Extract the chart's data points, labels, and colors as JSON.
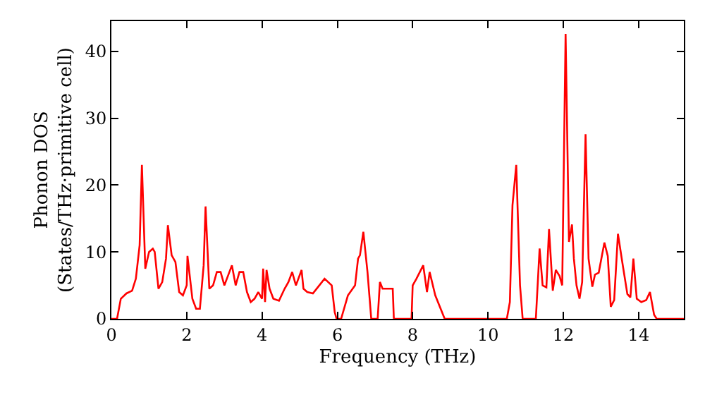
{
  "chart_data": {
    "type": "line",
    "xlabel": "Frequency (THz)",
    "ylabel": "Phonon DOS\n(States/THz·primitive cell)",
    "xlim": [
      0,
      15.2
    ],
    "ylim": [
      0,
      44.5
    ],
    "xticks": [
      0,
      2,
      4,
      6,
      8,
      10,
      12,
      14
    ],
    "yticks": [
      0,
      10,
      20,
      30,
      40
    ],
    "marker": "none",
    "line_style": "solid",
    "series": [
      {
        "color": "#ff0000",
        "x": [
          0,
          0.15,
          0.25,
          0.4,
          0.55,
          0.65,
          0.75,
          0.81,
          0.9,
          1.0,
          1.1,
          1.15,
          1.25,
          1.35,
          1.45,
          1.5,
          1.6,
          1.7,
          1.8,
          1.9,
          2.0,
          2.02,
          2.15,
          2.25,
          2.35,
          2.45,
          2.5,
          2.6,
          2.7,
          2.8,
          2.9,
          3.0,
          3.1,
          3.2,
          3.3,
          3.4,
          3.5,
          3.6,
          3.7,
          3.8,
          3.9,
          4.0,
          4.03,
          4.08,
          4.12,
          4.2,
          4.3,
          4.45,
          4.6,
          4.7,
          4.8,
          4.9,
          5.05,
          5.1,
          5.2,
          5.35,
          5.45,
          5.66,
          5.85,
          5.93,
          5.98,
          6.1,
          6.28,
          6.47,
          6.55,
          6.6,
          6.69,
          6.8,
          6.9,
          7.07,
          7.13,
          7.2,
          7.3,
          7.47,
          7.5,
          7.97,
          8.0,
          8.1,
          8.28,
          8.38,
          8.45,
          8.6,
          8.85,
          10.5,
          10.58,
          10.65,
          10.75,
          10.85,
          10.92,
          11.27,
          11.37,
          11.45,
          11.55,
          11.62,
          11.72,
          11.8,
          11.9,
          11.97,
          12.06,
          12.15,
          12.23,
          12.28,
          12.35,
          12.43,
          12.5,
          12.59,
          12.67,
          12.77,
          12.84,
          12.94,
          13.09,
          13.18,
          13.26,
          13.35,
          13.45,
          13.57,
          13.7,
          13.78,
          13.86,
          13.95,
          14.07,
          14.2,
          14.3,
          14.41,
          14.48,
          15.2
        ],
        "values": [
          0,
          0,
          3,
          3.8,
          4.2,
          6,
          11,
          23,
          7.5,
          10,
          10.5,
          10,
          4.5,
          5.5,
          9,
          14,
          9.5,
          8.5,
          4,
          3.5,
          5,
          9.4,
          3,
          1.5,
          1.5,
          8,
          16.8,
          4.5,
          5,
          7,
          7,
          5,
          6.5,
          8,
          5,
          7,
          7,
          4,
          2.5,
          3,
          4,
          3,
          7.5,
          2.5,
          7.3,
          4.5,
          3,
          2.7,
          4.5,
          5.5,
          7,
          5,
          7.3,
          4.5,
          4,
          3.8,
          4.5,
          6,
          5,
          1,
          0,
          0,
          3.5,
          5,
          9,
          9.5,
          13,
          7,
          0,
          0,
          5.5,
          4.5,
          4.5,
          4.5,
          0,
          0,
          5,
          6,
          8,
          4,
          7,
          3.5,
          0,
          0,
          2.5,
          17,
          23,
          5,
          0,
          0,
          10.5,
          5,
          4.7,
          13.4,
          4.2,
          7.3,
          6.4,
          5,
          42.6,
          11.5,
          14.1,
          9,
          5,
          3,
          5.5,
          27.6,
          9,
          4.8,
          6.6,
          6.9,
          11.4,
          9.4,
          1.8,
          2.8,
          12.7,
          8.3,
          3.7,
          3.2,
          9,
          3,
          2.5,
          2.8,
          4,
          0.6,
          0,
          0
        ]
      }
    ]
  }
}
